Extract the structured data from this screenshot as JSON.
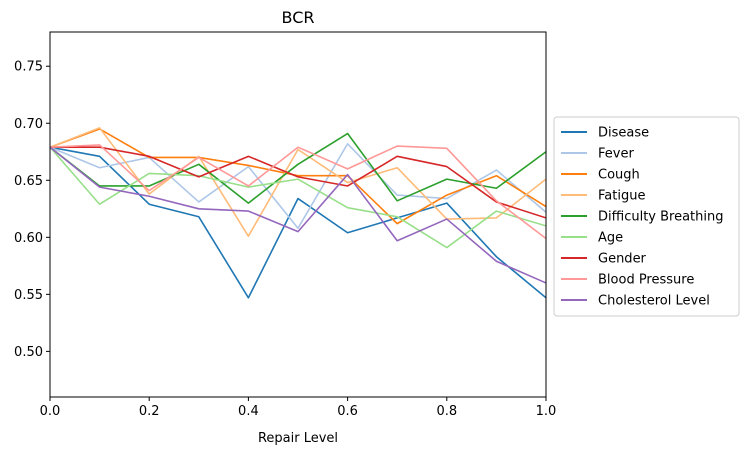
{
  "chart_data": {
    "type": "line",
    "title": "BCR",
    "xlabel": "Repair Level",
    "ylabel": "",
    "xlim": [
      0.0,
      1.0
    ],
    "ylim": [
      0.46,
      0.78
    ],
    "x": [
      0.0,
      0.1,
      0.2,
      0.3,
      0.4,
      0.5,
      0.6,
      0.7,
      0.8,
      0.9,
      1.0
    ],
    "xticks": [
      "0.0",
      "0.2",
      "0.4",
      "0.6",
      "0.8",
      "1.0"
    ],
    "xtick_values": [
      0.0,
      0.2,
      0.4,
      0.6,
      0.8,
      1.0
    ],
    "yticks": [
      "0.50",
      "0.55",
      "0.60",
      "0.65",
      "0.70",
      "0.75"
    ],
    "ytick_values": [
      0.5,
      0.55,
      0.6,
      0.65,
      0.7,
      0.75
    ],
    "grid": false,
    "legend_position": "right",
    "series": [
      {
        "name": "Disease",
        "color": "#1f77b4",
        "values": [
          0.679,
          0.671,
          0.629,
          0.618,
          0.547,
          0.634,
          0.604,
          0.617,
          0.63,
          0.583,
          0.547
        ]
      },
      {
        "name": "Fever",
        "color": "#aec7e8",
        "values": [
          0.679,
          0.661,
          0.67,
          0.631,
          0.662,
          0.608,
          0.682,
          0.637,
          0.634,
          0.659,
          0.622
        ]
      },
      {
        "name": "Cough",
        "color": "#ff7f0e",
        "values": [
          0.679,
          0.695,
          0.67,
          0.67,
          0.663,
          0.654,
          0.654,
          0.612,
          0.637,
          0.654,
          0.627
        ]
      },
      {
        "name": "Fatigue",
        "color": "#ffbb78",
        "values": [
          0.679,
          0.696,
          0.638,
          0.671,
          0.601,
          0.677,
          0.648,
          0.661,
          0.616,
          0.617,
          0.651
        ]
      },
      {
        "name": "Difficulty Breathing",
        "color": "#2ca02c",
        "values": [
          0.679,
          0.645,
          0.645,
          0.664,
          0.63,
          0.664,
          0.691,
          0.632,
          0.651,
          0.643,
          0.675
        ]
      },
      {
        "name": "Age",
        "color": "#98df8a",
        "values": [
          0.679,
          0.629,
          0.656,
          0.654,
          0.644,
          0.651,
          0.626,
          0.618,
          0.591,
          0.623,
          0.61
        ]
      },
      {
        "name": "Gender",
        "color": "#d62728",
        "values": [
          0.679,
          0.679,
          0.671,
          0.653,
          0.671,
          0.653,
          0.645,
          0.671,
          0.662,
          0.631,
          0.617
        ]
      },
      {
        "name": "Blood Pressure",
        "color": "#ff9896",
        "values": [
          0.679,
          0.681,
          0.641,
          0.67,
          0.645,
          0.679,
          0.66,
          0.68,
          0.678,
          0.632,
          0.599
        ]
      },
      {
        "name": "Cholesterol Level",
        "color": "#9467bd",
        "values": [
          0.679,
          0.644,
          0.636,
          0.625,
          0.623,
          0.605,
          0.655,
          0.597,
          0.616,
          0.579,
          0.56
        ]
      }
    ]
  }
}
